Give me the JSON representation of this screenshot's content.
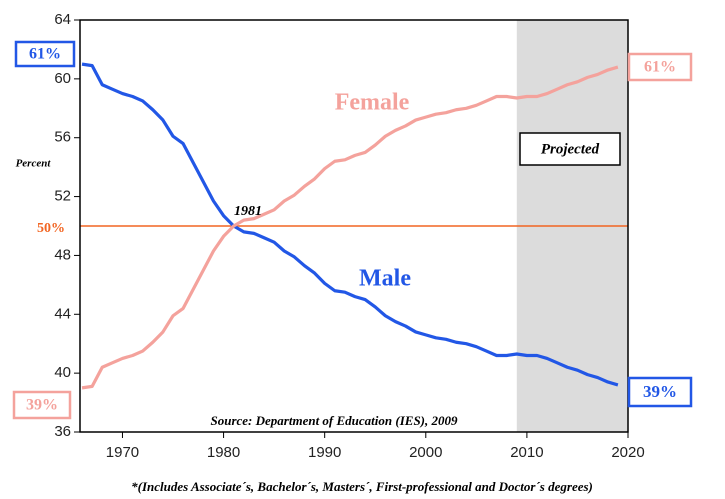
{
  "chart_data": {
    "type": "line",
    "y_label": "Percent",
    "x": [
      1966,
      1967,
      1968,
      1969,
      1970,
      1971,
      1972,
      1973,
      1974,
      1975,
      1976,
      1977,
      1978,
      1979,
      1980,
      1981,
      1982,
      1983,
      1984,
      1985,
      1986,
      1987,
      1988,
      1989,
      1990,
      1991,
      1992,
      1993,
      1994,
      1995,
      1996,
      1997,
      1998,
      1999,
      2000,
      2001,
      2002,
      2003,
      2004,
      2005,
      2006,
      2007,
      2008,
      2009,
      2010,
      2011,
      2012,
      2013,
      2014,
      2015,
      2016,
      2017,
      2018,
      2019
    ],
    "series": [
      {
        "name": "Male",
        "color": "#2257e6",
        "values": [
          61,
          60.9,
          59.6,
          59.3,
          59.0,
          58.8,
          58.5,
          57.9,
          57.2,
          56.1,
          55.6,
          54.3,
          53.0,
          51.7,
          50.7,
          50.0,
          49.6,
          49.5,
          49.2,
          48.9,
          48.3,
          47.9,
          47.3,
          46.8,
          46.1,
          45.6,
          45.5,
          45.2,
          45.0,
          44.5,
          43.9,
          43.5,
          43.2,
          42.8,
          42.6,
          42.4,
          42.3,
          42.1,
          42.0,
          41.8,
          41.5,
          41.2,
          41.2,
          41.3,
          41.2,
          41.2,
          41.0,
          40.7,
          40.4,
          40.2,
          39.9,
          39.7,
          39.4,
          39.2
        ]
      },
      {
        "name": "Female",
        "color": "#f4a29c",
        "values": [
          39,
          39.1,
          40.4,
          40.7,
          41.0,
          41.2,
          41.5,
          42.1,
          42.8,
          43.9,
          44.4,
          45.7,
          47.0,
          48.3,
          49.3,
          50.0,
          50.4,
          50.5,
          50.8,
          51.1,
          51.7,
          52.1,
          52.7,
          53.2,
          53.9,
          54.4,
          54.5,
          54.8,
          55.0,
          55.5,
          56.1,
          56.5,
          56.8,
          57.2,
          57.4,
          57.6,
          57.7,
          57.9,
          58.0,
          58.2,
          58.5,
          58.8,
          58.8,
          58.7,
          58.8,
          58.8,
          59.0,
          59.3,
          59.6,
          59.8,
          60.1,
          60.3,
          60.6,
          60.8
        ]
      }
    ],
    "xlim": [
      1965.8,
      2020
    ],
    "xticks": [
      1970,
      1980,
      1990,
      2000,
      2010,
      2020
    ],
    "ylim": [
      36,
      64
    ],
    "yticks": [
      36,
      40,
      44,
      48,
      52,
      56,
      60,
      64
    ],
    "reference_line": {
      "value": 50,
      "label": "50%",
      "color": "#f26522"
    },
    "projected_region": [
      2009,
      2020
    ],
    "projected_label": "Projected",
    "crossover_label": "1981",
    "end_labels": {
      "male_start": "61%",
      "female_start": "39%",
      "female_end": "61%",
      "male_end": "39%"
    },
    "source": "Source: Department of Education (IES), 2009",
    "footnote": "*(Includes Associate´s, Bachelor´s, Masters´, First-professional and Doctor´s degrees)"
  }
}
